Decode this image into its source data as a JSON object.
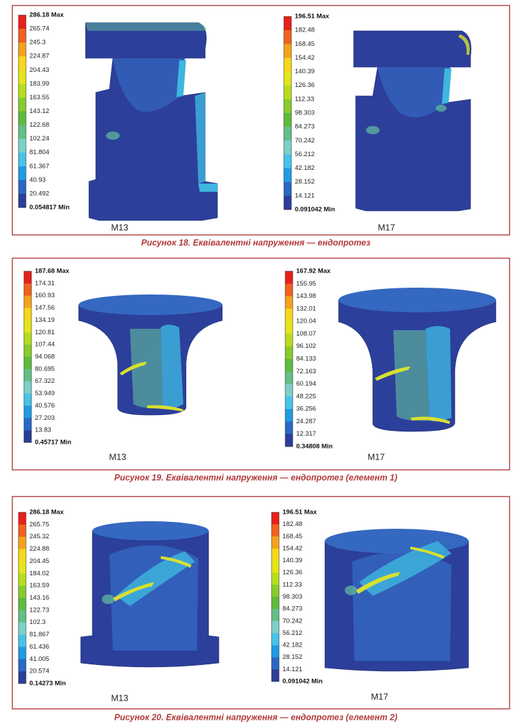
{
  "figures": [
    {
      "panels": [
        {
          "legend": [
            "286.18 Max",
            "265.74",
            "245.3",
            "224.87",
            "204.43",
            "183.99",
            "163.55",
            "143.12",
            "122.68",
            "102.24",
            "81.804",
            "61.367",
            "40.93",
            "20.492",
            "0.054817 Min"
          ],
          "label": "M13"
        },
        {
          "legend": [
            "196.51 Max",
            "182.48",
            "168.45",
            "154.42",
            "140.39",
            "126.36",
            "112.33",
            "98.303",
            "84.273",
            "70.242",
            "56.212",
            "42.182",
            "28.152",
            "14.121",
            "0.091042 Min"
          ],
          "label": "M17"
        }
      ],
      "caption": "Рисунок 18. Еквівалентні напруження — ендопротез"
    },
    {
      "panels": [
        {
          "legend": [
            "187.68 Max",
            "174.31",
            "160.93",
            "147.56",
            "134.19",
            "120.81",
            "107.44",
            "94.068",
            "80.695",
            "67.322",
            "53.949",
            "40.576",
            "27.203",
            "13.83",
            "0.45717 Min"
          ],
          "label": "M13"
        },
        {
          "legend": [
            "167.92 Max",
            "155.95",
            "143.98",
            "132.01",
            "120.04",
            "108.07",
            "96.102",
            "84.133",
            "72.163",
            "60.194",
            "48.225",
            "36.256",
            "24.287",
            "12.317",
            "0.34808 Min"
          ],
          "label": "M17"
        }
      ],
      "caption": "Рисунок 19. Еквівалентні напруження — ендопротез (елемент 1)"
    },
    {
      "panels": [
        {
          "legend": [
            "286.18 Max",
            "265.75",
            "245.32",
            "224.88",
            "204.45",
            "184.02",
            "163.59",
            "143.16",
            "122.73",
            "102.3",
            "81.867",
            "61.436",
            "41.005",
            "20.574",
            "0.14273 Min"
          ],
          "label": "M13"
        },
        {
          "legend": [
            "196.51 Max",
            "182.48",
            "168.45",
            "154.42",
            "140.39",
            "126.36",
            "112.33",
            "98.303",
            "84.273",
            "70.242",
            "56.212",
            "42.182",
            "28.152",
            "14.121",
            "0.091042 Min"
          ],
          "label": "M17"
        }
      ],
      "caption": "Рисунок 20. Еквівалентні напруження — ендопротез (елемент 2)"
    }
  ]
}
